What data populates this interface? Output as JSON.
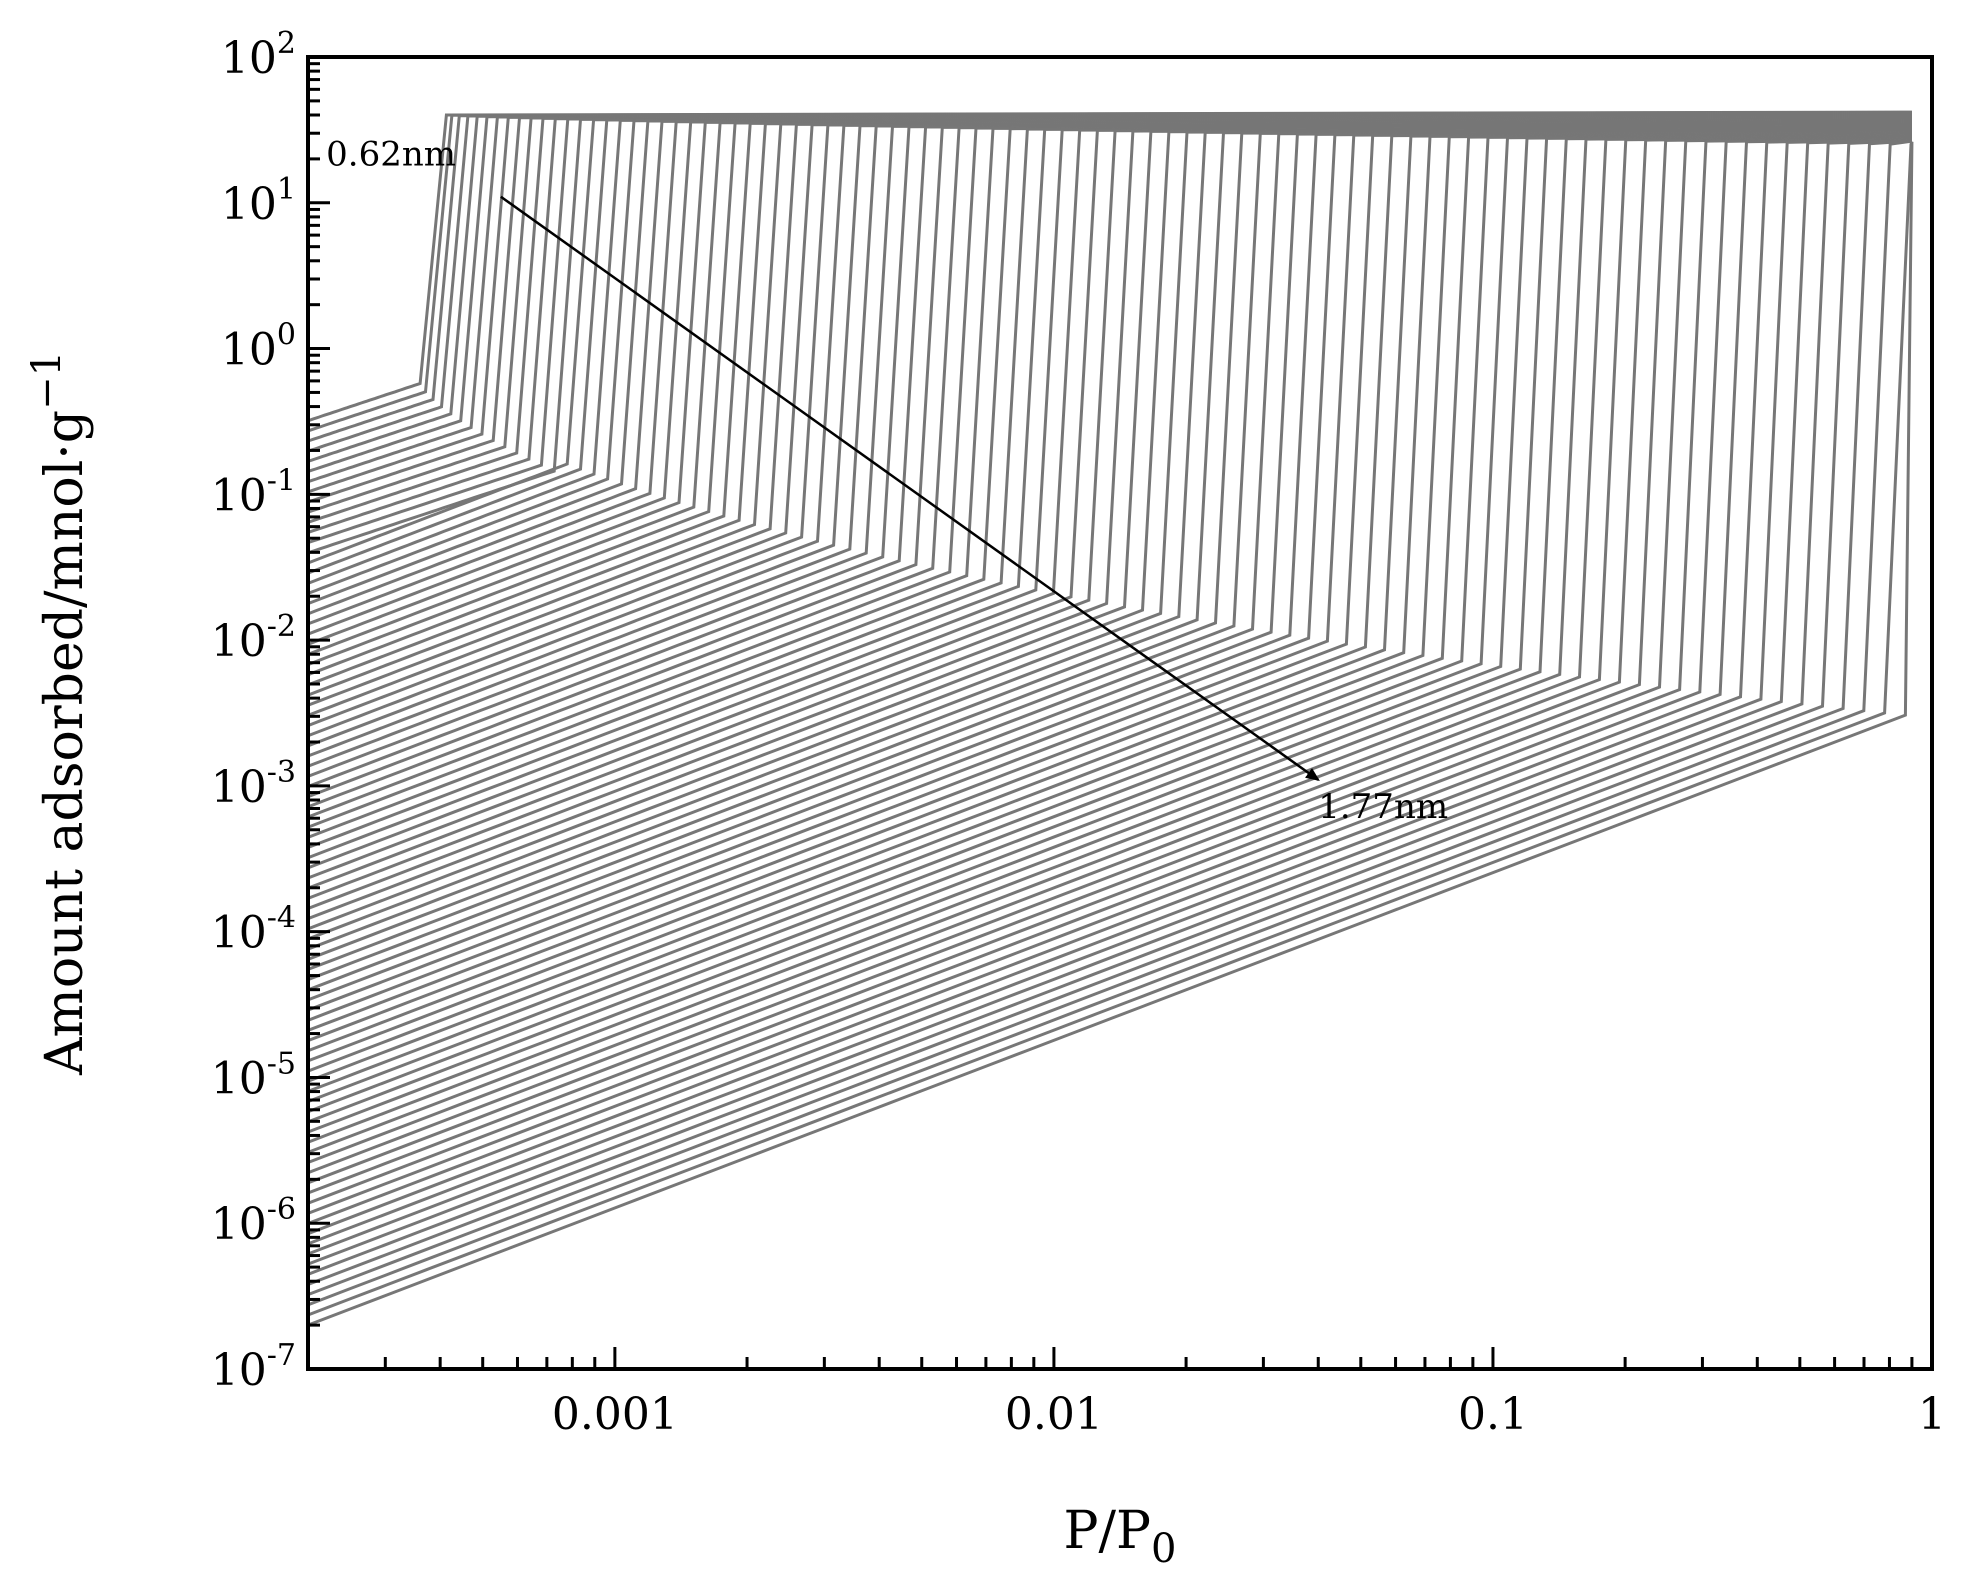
{
  "chart_data": {
    "type": "line",
    "xlabel": "P/P",
    "xlabel_sub": "0",
    "ylabel": "Amount adsorbed/mnol·g",
    "ylabel_sup": "−1",
    "xscale": "log",
    "yscale": "log",
    "xlim": [
      0.0002,
      1
    ],
    "ylim": [
      1e-07,
      100
    ],
    "grid": false,
    "legend": "none",
    "line_color": "#777777",
    "x_ticks": [
      {
        "value": 0.001,
        "label": "0.001"
      },
      {
        "value": 0.01,
        "label": "0.01"
      },
      {
        "value": 0.1,
        "label": "0.1"
      },
      {
        "value": 1,
        "label": "1"
      }
    ],
    "y_ticks": [
      {
        "value": 100,
        "base": "10",
        "exp": "2"
      },
      {
        "value": 10,
        "base": "10",
        "exp": "1"
      },
      {
        "value": 1,
        "base": "10",
        "exp": "0"
      },
      {
        "value": 0.1,
        "base": "10",
        "exp": "-1"
      },
      {
        "value": 0.01,
        "base": "10",
        "exp": "-2"
      },
      {
        "value": 0.001,
        "base": "10",
        "exp": "-3"
      },
      {
        "value": 0.0001,
        "base": "10",
        "exp": "-4"
      },
      {
        "value": 1e-05,
        "base": "10",
        "exp": "-5"
      },
      {
        "value": 1e-06,
        "base": "10",
        "exp": "-6"
      },
      {
        "value": 1e-07,
        "base": "10",
        "exp": "-7"
      }
    ],
    "series_family": {
      "count": 90,
      "pore_width_range_nm": [
        0.62,
        1.77
      ],
      "low_pressure_start_y": [
        0.32,
        2e-07
      ],
      "condensation_x_range": [
        0.00036,
        0.87
      ],
      "plateau_y_range": [
        40,
        25
      ],
      "curve_end_x": 0.9
    },
    "annotations": [
      {
        "text": "0.62nm",
        "x": 0.00022,
        "y": 18
      },
      {
        "text": "1.77nm",
        "x": 0.04,
        "y": 0.0006
      }
    ],
    "arrow": {
      "from": [
        0.00055,
        11
      ],
      "to": [
        0.04,
        0.0011
      ]
    }
  }
}
